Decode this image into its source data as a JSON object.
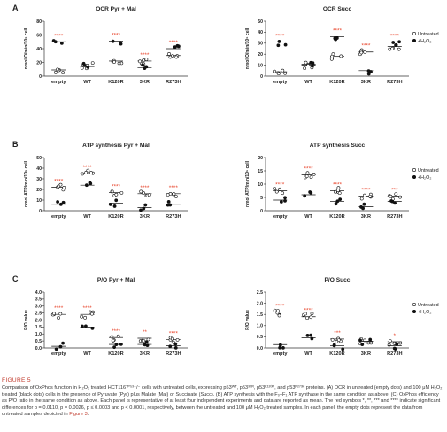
{
  "figure": {
    "label": "FIGURE 5",
    "caption_part1": "Comparison of OxPhos function in H₂O₂ treated HCT116ᵀᴾ⁵³⁻/⁻ cells with untreated cells, expressing p53ᵂᵀ, p53³ᴷᴿ, p53ᴷ¹²⁰ᴿ, and p53ᴿ²⁷³ᴴ proteins. (A) OCR in untreated (empty dots) and 100 μM H₂O₂ treated (black dots) cells in the presence of Pyruvate (Pyr) plus Malate (Mal) or Succinate (Succ). (B) ATP synthesis with the F₀–F₁ ATP synthase in the same condition as above. (C) OxPhos efficiency as P/O ratio in the same condition as above. Each panel is representative of at least four independent experiments and data are reported as mean. The red symbols *, **, *** and **** indicate significant differences for p = 0.0110, p = 0.0026, p ≤ 0.0003 and p < 0.0001, respectively, between the untreated and 100 μM H₂O₂ treated samples. In each panel, the empty dots represent the data from untreated samples depicted in ",
    "caption_ref": "Figure 3",
    "caption_end": "."
  },
  "panels": [
    {
      "letter": "A",
      "charts": [
        {
          "title": "OCR Pyr + Mal",
          "ylabel": "nmol O/min/10⁶ cell",
          "ylim": [
            0,
            80
          ],
          "yticks": [
            "0",
            "20",
            "40",
            "60",
            "80"
          ],
          "categories": [
            "empty",
            "WT",
            "K120R",
            "3KR",
            "R273H"
          ],
          "series": [
            {
              "name": "Untreated",
              "values": [
                9,
                15,
                22,
                22,
                30
              ]
            },
            {
              "name": "+H₂O₂",
              "values": [
                50,
                14,
                51,
                12,
                40
              ]
            }
          ],
          "significance": [
            "****",
            "",
            "****",
            "****",
            "****"
          ]
        },
        {
          "title": "OCR Succ",
          "ylabel": "nmol O/min/10⁶ cell",
          "ylim": [
            0,
            50
          ],
          "yticks": [
            "0",
            "10",
            "20",
            "30",
            "40",
            "50"
          ],
          "categories": [
            "empty",
            "WT",
            "K120R",
            "3KR",
            "R273H"
          ],
          "series": [
            {
              "name": "Untreated",
              "values": [
                4,
                10,
                18,
                22,
                27
              ]
            },
            {
              "name": "+H₂O₂",
              "values": [
                31,
                11,
                36,
                5,
                31
              ]
            }
          ],
          "significance": [
            "****",
            "",
            "****",
            "****",
            "****"
          ]
        }
      ]
    },
    {
      "letter": "B",
      "charts": [
        {
          "title": "ATP synthesis Pyr + Mal",
          "ylabel": "nmol ATP/min/10⁶ cell",
          "ylim": [
            0,
            50
          ],
          "yticks": [
            "0",
            "10",
            "20",
            "30",
            "40",
            "50"
          ],
          "categories": [
            "empty",
            "WT",
            "K120R",
            "3KR",
            "R273H"
          ],
          "series": [
            {
              "name": "Untreated",
              "values": [
                22,
                35,
                17,
                16,
                16
              ]
            },
            {
              "name": "+H₂O₂",
              "values": [
                6,
                24,
                7,
                3,
                6
              ]
            }
          ],
          "significance": [
            "****",
            "****",
            "****",
            "****",
            "****"
          ]
        },
        {
          "title": "ATP synthesis Succ",
          "ylabel": "nmol ATP/min/10⁶ cell",
          "ylim": [
            0,
            20
          ],
          "yticks": [
            "0",
            "5",
            "10",
            "15",
            "20"
          ],
          "categories": [
            "empty",
            "WT",
            "K120R",
            "3KR",
            "R273H"
          ],
          "series": [
            {
              "name": "Untreated",
              "values": [
                7.5,
                13.5,
                7.5,
                5.5,
                5.5
              ]
            },
            {
              "name": "+H₂O₂",
              "values": [
                4,
                6,
                3.5,
                1.5,
                3.5
              ]
            }
          ],
          "significance": [
            "****",
            "****",
            "****",
            "****",
            "***"
          ]
        }
      ]
    },
    {
      "letter": "C",
      "charts": [
        {
          "title": "P/O Pyr + Mal",
          "ylabel": "P/O value",
          "ylim": [
            0,
            4.0
          ],
          "yticks": [
            "0.0",
            "0.5",
            "1.0",
            "1.5",
            "2.0",
            "2.5",
            "3.0",
            "3.5",
            "4.0"
          ],
          "categories": [
            "empty",
            "WT",
            "K120R",
            "3KR",
            "R273H"
          ],
          "series": [
            {
              "name": "Untreated",
              "values": [
                2.4,
                2.4,
                0.75,
                0.7,
                0.6
              ]
            },
            {
              "name": "+H₂O₂",
              "values": [
                0.12,
                1.5,
                0.25,
                0.25,
                0.15
              ]
            }
          ],
          "significance": [
            "****",
            "****",
            "****",
            "**",
            "****"
          ]
        },
        {
          "title": "P/O Succ",
          "ylabel": "P/O value",
          "ylim": [
            0,
            2.5
          ],
          "yticks": [
            "0.0",
            "0.5",
            "1.0",
            "1.5",
            "2.0",
            "2.5"
          ],
          "categories": [
            "empty",
            "WT",
            "K120R",
            "3KR",
            "R273H"
          ],
          "series": [
            {
              "name": "Untreated",
              "values": [
                1.6,
                1.4,
                0.4,
                0.3,
                0.28
              ]
            },
            {
              "name": "+H₂O₂",
              "values": [
                0.15,
                0.45,
                0.1,
                0.3,
                0.1
              ]
            }
          ],
          "significance": [
            "****",
            "****",
            "***",
            "",
            "*"
          ]
        }
      ]
    }
  ],
  "legend": {
    "untreated": "Untreated",
    "treated": "+H₂O₂"
  },
  "colors": {
    "significance": "#e8452c",
    "points": "#111111",
    "axis": "#333333"
  },
  "chart_data": [
    {
      "type": "scatter",
      "title": "OCR Pyr + Mal",
      "ylabel": "nmol O/min/10⁶ cell",
      "ylim": [
        0,
        80
      ],
      "categories": [
        "empty",
        "WT",
        "K120R",
        "3KR",
        "R273H"
      ],
      "series": [
        {
          "name": "Untreated",
          "values": [
            9,
            15,
            22,
            22,
            30
          ]
        },
        {
          "name": "+H₂O₂",
          "values": [
            50,
            14,
            51,
            12,
            40
          ]
        }
      ]
    },
    {
      "type": "scatter",
      "title": "OCR Succ",
      "ylabel": "nmol O/min/10⁶ cell",
      "ylim": [
        0,
        50
      ],
      "categories": [
        "empty",
        "WT",
        "K120R",
        "3KR",
        "R273H"
      ],
      "series": [
        {
          "name": "Untreated",
          "values": [
            4,
            10,
            18,
            22,
            27
          ]
        },
        {
          "name": "+H₂O₂",
          "values": [
            31,
            11,
            36,
            5,
            31
          ]
        }
      ]
    },
    {
      "type": "scatter",
      "title": "ATP synthesis Pyr + Mal",
      "ylabel": "nmol ATP/min/10⁶ cell",
      "ylim": [
        0,
        50
      ],
      "categories": [
        "empty",
        "WT",
        "K120R",
        "3KR",
        "R273H"
      ],
      "series": [
        {
          "name": "Untreated",
          "values": [
            22,
            35,
            17,
            16,
            16
          ]
        },
        {
          "name": "+H₂O₂",
          "values": [
            6,
            24,
            7,
            3,
            6
          ]
        }
      ]
    },
    {
      "type": "scatter",
      "title": "ATP synthesis Succ",
      "ylabel": "nmol ATP/min/10⁶ cell",
      "ylim": [
        0,
        20
      ],
      "categories": [
        "empty",
        "WT",
        "K120R",
        "3KR",
        "R273H"
      ],
      "series": [
        {
          "name": "Untreated",
          "values": [
            7.5,
            13.5,
            7.5,
            5.5,
            5.5
          ]
        },
        {
          "name": "+H₂O₂",
          "values": [
            4,
            6,
            3.5,
            1.5,
            3.5
          ]
        }
      ]
    },
    {
      "type": "scatter",
      "title": "P/O Pyr + Mal",
      "ylabel": "P/O value",
      "ylim": [
        0,
        4.0
      ],
      "categories": [
        "empty",
        "WT",
        "K120R",
        "3KR",
        "R273H"
      ],
      "series": [
        {
          "name": "Untreated",
          "values": [
            2.4,
            2.4,
            0.75,
            0.7,
            0.6
          ]
        },
        {
          "name": "+H₂O₂",
          "values": [
            0.12,
            1.5,
            0.25,
            0.25,
            0.15
          ]
        }
      ]
    },
    {
      "type": "scatter",
      "title": "P/O Succ",
      "ylabel": "P/O value",
      "ylim": [
        0,
        2.5
      ],
      "categories": [
        "empty",
        "WT",
        "K120R",
        "3KR",
        "R273H"
      ],
      "series": [
        {
          "name": "Untreated",
          "values": [
            1.6,
            1.4,
            0.4,
            0.3,
            0.28
          ]
        },
        {
          "name": "+H₂O₂",
          "values": [
            0.15,
            0.45,
            0.1,
            0.3,
            0.1
          ]
        }
      ]
    }
  ]
}
